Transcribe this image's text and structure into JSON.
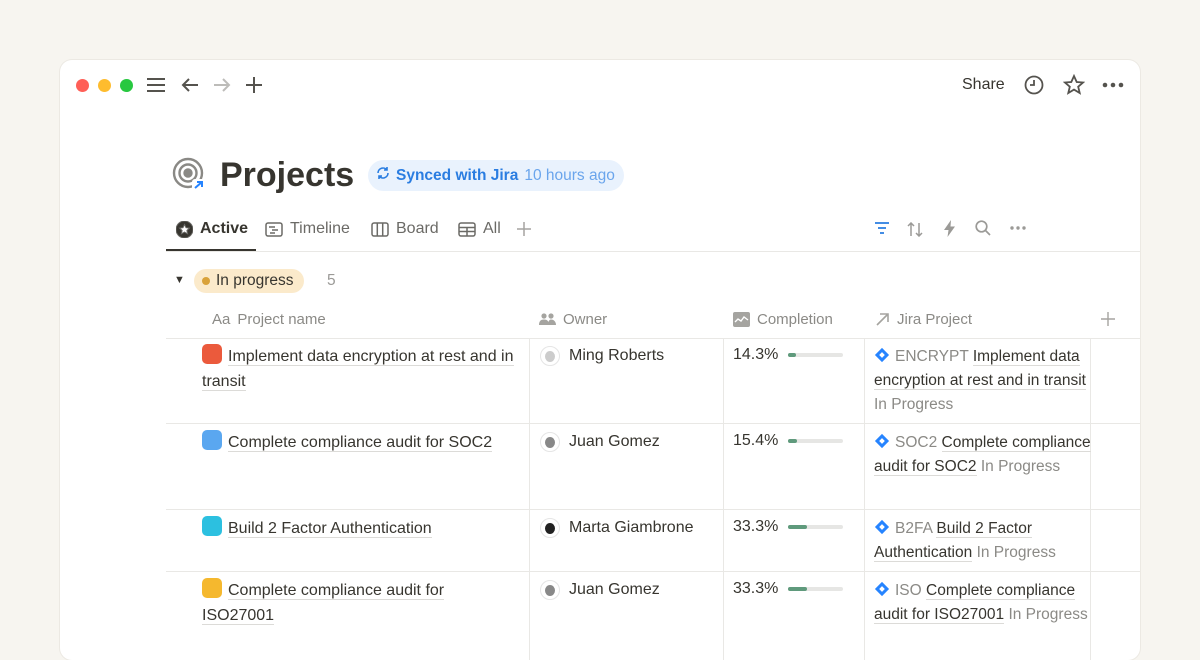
{
  "window": {
    "controls": [
      "close",
      "minimize",
      "maximize"
    ],
    "colors": {
      "close": "#ff5f57",
      "minimize": "#febc2e",
      "maximize": "#28c840"
    }
  },
  "topbar": {
    "share_label": "Share",
    "icons": [
      "menu-icon",
      "back-arrow-icon",
      "forward-arrow-icon",
      "plus-icon",
      "history-clock-icon",
      "star-icon",
      "more-icon"
    ]
  },
  "page": {
    "title": "Projects",
    "sync_label": "Synced with Jira",
    "sync_time": "10 hours ago"
  },
  "tabs": [
    {
      "label": "Active",
      "active": true
    },
    {
      "label": "Timeline"
    },
    {
      "label": "Board"
    },
    {
      "label": "All"
    }
  ],
  "toolbar_icons": [
    "filter-icon",
    "sort-icon",
    "automation-bolt-icon",
    "search-icon",
    "more-icon"
  ],
  "group": {
    "label": "In progress",
    "count": "5",
    "color": "#d9a23a"
  },
  "columns": {
    "name": "Project name",
    "name_prefix": "Aa",
    "owner": "Owner",
    "completion": "Completion",
    "jira": "Jira Project"
  },
  "rows": [
    {
      "name": "Implement data encryption at rest and in transit",
      "icon_color": "#eb5a3c",
      "owner": "Ming Roberts",
      "completion": "14.3%",
      "progress": 14.3,
      "jira_key": "ENCRYPT",
      "jira_title": "Implement data encryption at rest and in transit",
      "jira_status": "In Progress"
    },
    {
      "name": "Complete compliance audit for SOC2",
      "icon_color": "#5aa7f0",
      "owner": "Juan Gomez",
      "completion": "15.4%",
      "progress": 15.4,
      "jira_key": "SOC2",
      "jira_title": "Complete compliance audit for SOC2",
      "jira_status": "In Progress"
    },
    {
      "name": "Build 2 Factor Authentication",
      "icon_color": "#2cc0e0",
      "owner": "Marta Giambrone",
      "completion": "33.3%",
      "progress": 33.3,
      "jira_key": "B2FA",
      "jira_title": "Build 2 Factor Authentication",
      "jira_status": "In Progress"
    },
    {
      "name": "Complete compliance audit for ISO27001",
      "icon_color": "#f5b82e",
      "owner": "Juan Gomez",
      "completion": "33.3%",
      "progress": 33.3,
      "jira_key": "ISO",
      "jira_title": "Complete compliance audit for ISO27001",
      "jira_status": "In Progress"
    }
  ]
}
